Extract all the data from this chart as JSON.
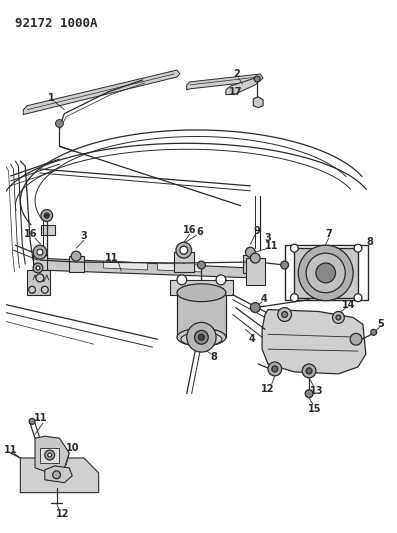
{
  "title": "92172 1000A",
  "bg_color": "#ffffff",
  "line_color": "#2a2a2a",
  "title_fontsize": 9,
  "label_fontsize": 7,
  "fig_width": 3.97,
  "fig_height": 5.33,
  "dpi": 100
}
